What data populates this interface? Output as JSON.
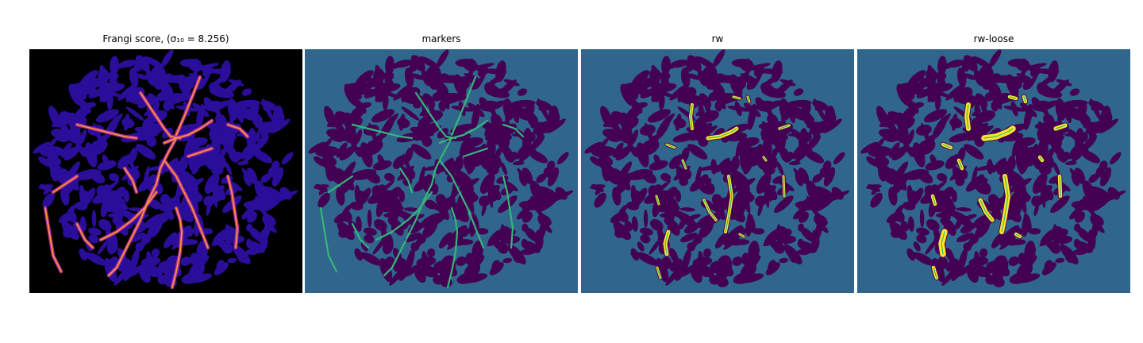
{
  "figure": {
    "panels": [
      {
        "id": "frangi",
        "title": "Frangi score, (σ₁₀ = 8.256)",
        "colormap": "plasma"
      },
      {
        "id": "markers",
        "title": "markers",
        "colormap": "viridis"
      },
      {
        "id": "rw",
        "title": "rw",
        "colormap": "viridis"
      },
      {
        "id": "rw-loose",
        "title": "rw-loose",
        "colormap": "viridis"
      }
    ]
  },
  "colors": {
    "frangi_background": "#000000",
    "frangi_texture": "#2a0e9a",
    "frangi_vessel_mid": "#b32c8e",
    "frangi_vessel_hot": "#f89a3a",
    "seg_background": "#30668c",
    "seg_texture": "#440154",
    "seg_marker": "#35b779",
    "seg_vessel": "#fde725"
  }
}
